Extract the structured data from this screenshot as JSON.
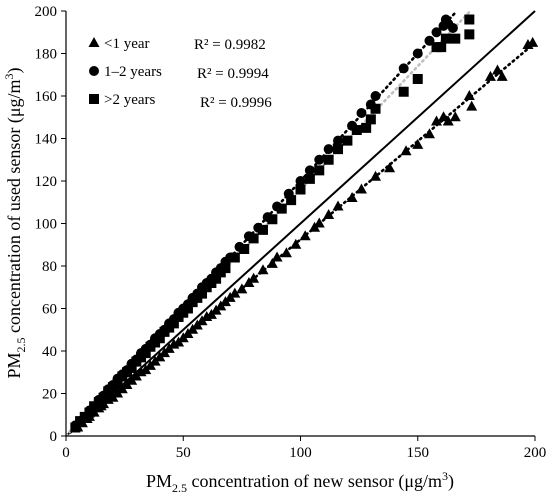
{
  "chart_data": {
    "type": "scatter",
    "xlabel": {
      "pre": "PM",
      "sub": "2.5",
      "mid": " concentration of new sensor (μg/m",
      "sup": "3",
      "post": ")"
    },
    "ylabel": {
      "pre": "PM",
      "sub": "2.5",
      "mid": " concentration of used sensor (μg/m",
      "sup": "3",
      "post": ")"
    },
    "xlim": [
      0,
      200
    ],
    "ylim": [
      0,
      200
    ],
    "x_ticks": [
      "0",
      "50",
      "100",
      "150",
      "200"
    ],
    "y_ticks": [
      "0",
      "20",
      "40",
      "60",
      "80",
      "100",
      "120",
      "140",
      "160",
      "180",
      "200"
    ],
    "grid": false,
    "legend_position": "top-left",
    "reference_line": {
      "style": "solid",
      "color": "#000000",
      "slope": 1,
      "intercept": 0
    },
    "series": [
      {
        "name": "<1 year",
        "marker": "triangle",
        "color": "#000000",
        "r2": "R² = 0.9982",
        "trend": {
          "style": "dotted",
          "color": "#000000",
          "slope": 0.925,
          "intercept": 0
        },
        "points": [
          [
            5,
            4
          ],
          [
            7,
            6
          ],
          [
            9,
            8
          ],
          [
            10,
            9
          ],
          [
            12,
            11
          ],
          [
            14,
            13
          ],
          [
            15,
            14
          ],
          [
            16,
            15
          ],
          [
            18,
            17
          ],
          [
            20,
            18
          ],
          [
            22,
            20
          ],
          [
            24,
            22
          ],
          [
            26,
            24
          ],
          [
            28,
            26
          ],
          [
            30,
            28
          ],
          [
            32,
            30
          ],
          [
            34,
            31
          ],
          [
            36,
            33
          ],
          [
            38,
            35
          ],
          [
            40,
            37
          ],
          [
            42,
            39
          ],
          [
            44,
            41
          ],
          [
            46,
            43
          ],
          [
            48,
            44
          ],
          [
            50,
            46
          ],
          [
            52,
            48
          ],
          [
            54,
            50
          ],
          [
            56,
            52
          ],
          [
            58,
            54
          ],
          [
            60,
            56
          ],
          [
            62,
            57
          ],
          [
            64,
            59
          ],
          [
            66,
            61
          ],
          [
            68,
            63
          ],
          [
            70,
            65
          ],
          [
            72,
            67
          ],
          [
            75,
            69
          ],
          [
            78,
            72
          ],
          [
            80,
            74
          ],
          [
            84,
            78
          ],
          [
            88,
            81
          ],
          [
            90,
            84
          ],
          [
            94,
            86
          ],
          [
            98,
            90
          ],
          [
            102,
            94
          ],
          [
            106,
            98
          ],
          [
            108,
            100
          ],
          [
            112,
            104
          ],
          [
            116,
            108
          ],
          [
            122,
            112
          ],
          [
            126,
            116
          ],
          [
            132,
            122
          ],
          [
            138,
            126
          ],
          [
            145,
            134
          ],
          [
            150,
            137
          ],
          [
            155,
            142
          ],
          [
            158,
            148
          ],
          [
            161,
            150
          ],
          [
            163,
            148
          ],
          [
            166,
            150
          ],
          [
            173,
            155
          ],
          [
            172,
            160
          ],
          [
            181,
            169
          ],
          [
            184,
            172
          ],
          [
            186,
            169
          ],
          [
            197,
            184
          ],
          [
            199,
            185
          ]
        ]
      },
      {
        "name": "1–2 years",
        "marker": "circle",
        "color": "#000000",
        "r2": "R² = 0.9994",
        "trend": {
          "style": "dotted",
          "color": "#000000",
          "slope": 1.2,
          "intercept": 0
        },
        "points": [
          [
            4,
            5
          ],
          [
            6,
            7
          ],
          [
            8,
            9
          ],
          [
            10,
            12
          ],
          [
            12,
            14
          ],
          [
            14,
            17
          ],
          [
            16,
            19
          ],
          [
            18,
            22
          ],
          [
            20,
            24
          ],
          [
            22,
            27
          ],
          [
            24,
            29
          ],
          [
            26,
            31
          ],
          [
            28,
            34
          ],
          [
            30,
            36
          ],
          [
            32,
            39
          ],
          [
            34,
            41
          ],
          [
            36,
            43
          ],
          [
            38,
            46
          ],
          [
            40,
            48
          ],
          [
            42,
            50
          ],
          [
            44,
            53
          ],
          [
            46,
            55
          ],
          [
            48,
            58
          ],
          [
            50,
            60
          ],
          [
            52,
            62
          ],
          [
            54,
            65
          ],
          [
            56,
            67
          ],
          [
            58,
            70
          ],
          [
            60,
            72
          ],
          [
            62,
            74
          ],
          [
            64,
            77
          ],
          [
            66,
            79
          ],
          [
            68,
            82
          ],
          [
            70,
            84
          ],
          [
            74,
            89
          ],
          [
            78,
            94
          ],
          [
            82,
            98
          ],
          [
            86,
            103
          ],
          [
            90,
            108
          ],
          [
            95,
            114
          ],
          [
            100,
            120
          ],
          [
            104,
            125
          ],
          [
            108,
            130
          ],
          [
            112,
            135
          ],
          [
            116,
            139
          ],
          [
            122,
            146
          ],
          [
            126,
            152
          ],
          [
            130,
            156
          ],
          [
            132,
            160
          ],
          [
            144,
            173
          ],
          [
            150,
            180
          ],
          [
            155,
            186
          ],
          [
            158,
            190
          ],
          [
            161,
            193
          ],
          [
            162,
            196
          ],
          [
            163,
            194
          ],
          [
            165,
            192
          ]
        ]
      },
      {
        "name": ">2 years",
        "marker": "square",
        "color": "#000000",
        "r2": "R² = 0.9996",
        "trend": {
          "style": "dotted",
          "color": "#bfbfbf",
          "slope": 1.16,
          "intercept": 0
        },
        "points": [
          [
            4,
            4
          ],
          [
            6,
            7
          ],
          [
            8,
            9
          ],
          [
            10,
            11
          ],
          [
            12,
            14
          ],
          [
            14,
            16
          ],
          [
            16,
            18
          ],
          [
            18,
            21
          ],
          [
            20,
            23
          ],
          [
            22,
            25
          ],
          [
            24,
            28
          ],
          [
            26,
            30
          ],
          [
            28,
            32
          ],
          [
            30,
            35
          ],
          [
            32,
            37
          ],
          [
            34,
            39
          ],
          [
            36,
            42
          ],
          [
            38,
            44
          ],
          [
            40,
            46
          ],
          [
            42,
            49
          ],
          [
            44,
            51
          ],
          [
            46,
            53
          ],
          [
            48,
            56
          ],
          [
            50,
            58
          ],
          [
            52,
            60
          ],
          [
            54,
            63
          ],
          [
            56,
            65
          ],
          [
            58,
            67
          ],
          [
            60,
            70
          ],
          [
            62,
            72
          ],
          [
            64,
            74
          ],
          [
            66,
            77
          ],
          [
            68,
            79
          ],
          [
            72,
            84
          ],
          [
            76,
            88
          ],
          [
            80,
            93
          ],
          [
            84,
            97
          ],
          [
            88,
            102
          ],
          [
            92,
            107
          ],
          [
            96,
            111
          ],
          [
            100,
            116
          ],
          [
            104,
            121
          ],
          [
            108,
            125
          ],
          [
            112,
            130
          ],
          [
            116,
            135
          ],
          [
            120,
            139
          ],
          [
            124,
            144
          ],
          [
            128,
            145
          ],
          [
            130,
            149
          ],
          [
            132,
            154
          ],
          [
            144,
            162
          ],
          [
            150,
            168
          ],
          [
            158,
            183
          ],
          [
            160,
            183
          ],
          [
            162,
            187
          ],
          [
            166,
            187
          ],
          [
            172,
            189
          ],
          [
            172,
            196
          ]
        ]
      }
    ]
  }
}
